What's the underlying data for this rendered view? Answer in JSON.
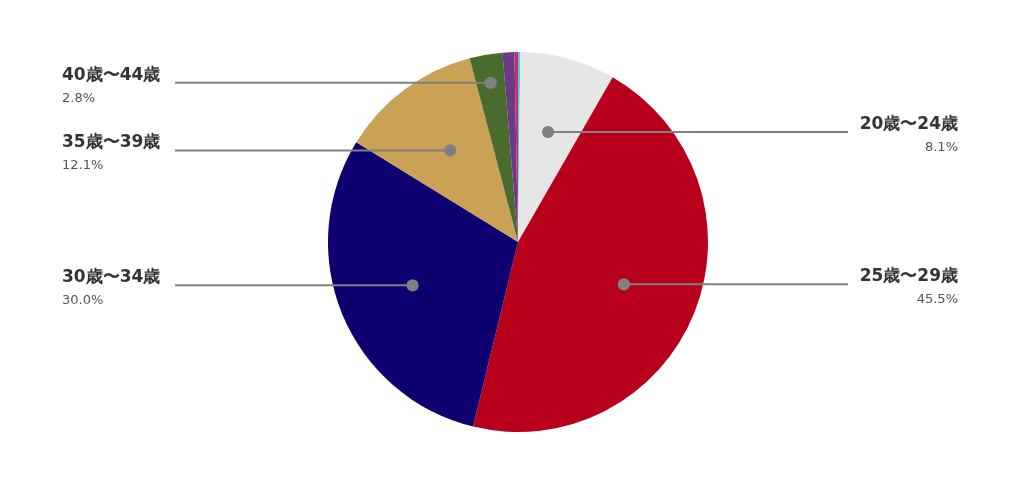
{
  "chart_data": {
    "type": "pie",
    "categories": [
      null,
      "20歳〜24歳",
      "25歳〜29歳",
      "30歳〜34歳",
      "35歳〜39歳",
      "40歳〜44歳",
      null,
      null
    ],
    "values": [
      0.2,
      8.1,
      45.5,
      30.0,
      12.1,
      2.8,
      1.0,
      0.3
    ],
    "value_labels": [
      null,
      "8.1%",
      "45.5%",
      "30.0%",
      "12.1%",
      "2.8%",
      null,
      null
    ],
    "colors": [
      "#5bc8d8",
      "#e6e6e6",
      "#b8001c",
      "#0e0070",
      "#c9a255",
      "#4a6b2e",
      "#6a3a86",
      "#c0306a"
    ]
  }
}
